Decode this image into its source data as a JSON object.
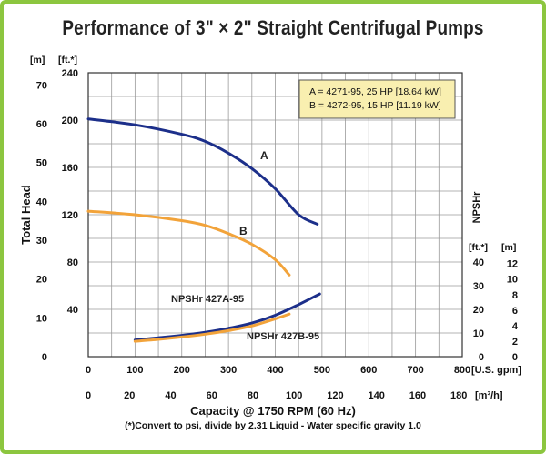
{
  "chart_data": {
    "type": "line",
    "title": "Performance of 3\" × 2\" Straight Centrifugal Pumps",
    "footnote": "(*)Convert to psi, divide by 2.31     Liquid - Water specific gravity 1.0",
    "legend_box": [
      "A = 4271-95,  25 HP [18.64 kW]",
      "B = 4272-95,  15 HP [11.19 kW]"
    ],
    "legend_placement": "top-right",
    "legend_fill": "#f9efb0",
    "grid": true,
    "x_axis": {
      "label": "Capacity @ 1750 RPM (60 Hz)",
      "unit": "[U.S. gpm]",
      "range": [
        0,
        800
      ],
      "ticks": [
        0,
        100,
        200,
        300,
        400,
        500,
        600,
        700,
        800
      ],
      "tick_labels": [
        "0",
        "100",
        "200",
        "300",
        "400",
        "500",
        "600",
        "700",
        "800"
      ]
    },
    "x_axis_secondary": {
      "unit": "[m³/h]",
      "ticks": [
        0,
        20,
        40,
        60,
        80,
        100,
        120,
        140,
        160,
        180
      ],
      "tick_labels": [
        "0",
        "20",
        "40",
        "60",
        "80",
        "100",
        "120",
        "140",
        "160",
        "180"
      ]
    },
    "y_axis_left": {
      "label": "Total Head",
      "unit_ft": "[ft.*]",
      "unit_m": "[m]",
      "range_ft": [
        0,
        240
      ],
      "ticks_ft": [
        40,
        80,
        120,
        160,
        200,
        240
      ],
      "tick_labels_ft": [
        "40",
        "80",
        "120",
        "160",
        "200",
        "240"
      ],
      "ticks_m": [
        0,
        10,
        20,
        30,
        40,
        50,
        60,
        70
      ],
      "tick_labels_m": [
        "0",
        "10",
        "20",
        "30",
        "40",
        "50",
        "60",
        "70"
      ]
    },
    "y_axis_right": {
      "label": "NPSHr",
      "unit_ft": "[ft.*]",
      "unit_m": "[m]",
      "range_ft": [
        0,
        40
      ],
      "ticks_ft": [
        0,
        10,
        20,
        30,
        40
      ],
      "tick_labels_ft": [
        "0",
        "10",
        "20",
        "30",
        "40"
      ],
      "ticks_m": [
        0,
        2,
        4,
        6,
        8,
        10,
        12
      ],
      "tick_labels_m": [
        "0",
        "2",
        "4",
        "6",
        "8",
        "10",
        "12"
      ]
    },
    "series": [
      {
        "name": "A",
        "axis": "left",
        "color": "#1c2f8a",
        "x": [
          0,
          100,
          200,
          250,
          300,
          350,
          400,
          450,
          490
        ],
        "y": [
          201,
          196,
          188,
          182,
          172,
          159,
          142,
          120,
          112
        ]
      },
      {
        "name": "B",
        "axis": "left",
        "color": "#f2a33a",
        "x": [
          0,
          100,
          200,
          250,
          300,
          350,
          400,
          430
        ],
        "y": [
          123,
          120,
          115,
          111,
          104,
          95,
          82,
          69
        ]
      },
      {
        "name": "NPSHr 427A-95",
        "axis": "right",
        "color": "#1c2f8a",
        "x": [
          100,
          150,
          200,
          250,
          300,
          350,
          400,
          450,
          495
        ],
        "y": [
          7,
          8,
          9,
          10.3,
          12,
          14.2,
          17.5,
          22,
          26.5
        ]
      },
      {
        "name": "NPSHr 427B-95",
        "axis": "right",
        "color": "#f2a33a",
        "x": [
          100,
          150,
          200,
          250,
          300,
          350,
          400,
          430
        ],
        "y": [
          6.5,
          7.3,
          8.3,
          9.5,
          11,
          13,
          16,
          18
        ]
      }
    ],
    "curve_labels": [
      "A",
      "B",
      "NPSHr 427A-95",
      "NPSHr 427B-95"
    ]
  }
}
